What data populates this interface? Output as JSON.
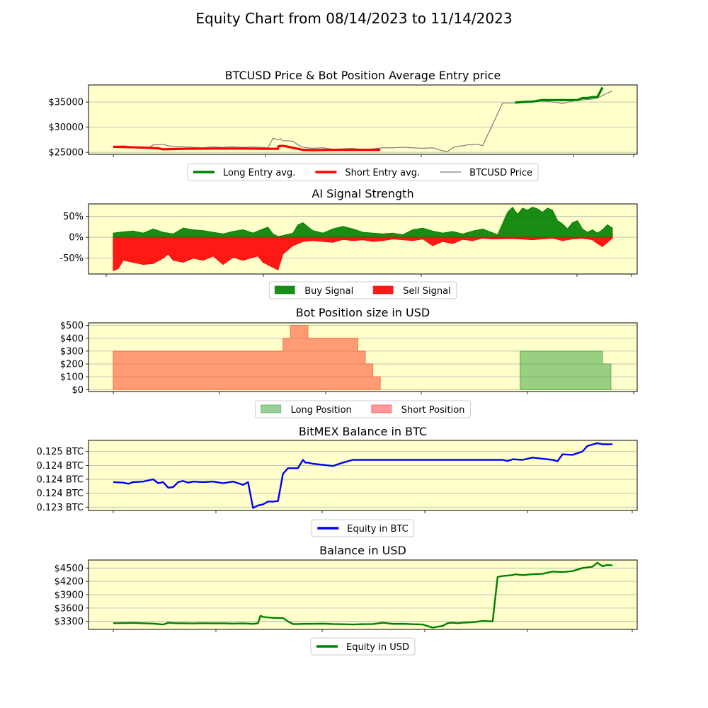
{
  "figure": {
    "title": "Equity Chart from 08/14/2023 to 11/14/2023",
    "panel_background": "#ffffcc",
    "grid_color": "#b0b0b0"
  },
  "chart_data": [
    {
      "type": "line",
      "title": "BTCUSD Price & Bot Position Average Entry price",
      "xlabel": "",
      "ylabel": "",
      "x_range": [
        0,
        100
      ],
      "ylim": [
        24600,
        38400
      ],
      "yticks": [
        25000,
        30000,
        35000
      ],
      "ytick_labels": [
        "$25000",
        "$30000",
        "$35000"
      ],
      "grid": "horizontal",
      "legend": {
        "placement": "below",
        "entries": [
          {
            "label": "Long Entry avg.",
            "color": "#008000",
            "kind": "line-thick"
          },
          {
            "label": "Short Entry avg.",
            "color": "#ff0000",
            "kind": "line-thick"
          },
          {
            "label": "BTCUSD Price",
            "color": "#808080",
            "kind": "line-thin"
          }
        ]
      },
      "series": [
        {
          "name": "BTCUSD Price",
          "color": "#808080",
          "width": 1.2,
          "x": [
            0,
            2,
            4,
            6,
            7,
            8,
            9,
            10,
            11,
            12,
            14,
            16,
            18,
            20,
            22,
            24,
            26,
            28,
            29,
            30,
            31,
            32,
            33,
            33.5,
            34,
            35,
            36,
            37,
            38,
            40,
            42,
            44,
            46,
            48,
            50,
            52,
            54,
            56,
            58,
            60,
            62,
            64,
            66,
            67,
            68,
            68.5,
            69,
            70,
            71,
            72,
            73,
            74,
            78,
            80,
            82,
            84,
            86,
            88,
            89,
            90,
            92,
            94,
            96,
            97,
            98,
            99,
            100
          ],
          "y": [
            26200,
            26300,
            26100,
            26000,
            25800,
            26500,
            26500,
            26600,
            26300,
            26200,
            26100,
            26000,
            25900,
            26100,
            26000,
            26100,
            26000,
            26100,
            26000,
            26000,
            25900,
            27800,
            27500,
            27700,
            27300,
            27300,
            27200,
            26500,
            26000,
            25800,
            25900,
            25600,
            25700,
            25800,
            25500,
            25700,
            25900,
            25900,
            26000,
            25900,
            25800,
            25900,
            25300,
            25200,
            25900,
            26100,
            26200,
            26300,
            26500,
            26500,
            26600,
            26300,
            34800,
            34800,
            35000,
            35100,
            35200,
            35000,
            34900,
            34700,
            35200,
            35400,
            35600,
            35800,
            36300,
            36800,
            37200
          ]
        },
        {
          "name": "Short Entry avg.",
          "color": "#ff0000",
          "width": 3.2,
          "x": [
            0,
            4,
            7,
            9,
            10,
            14,
            20,
            26,
            30,
            33,
            33.1,
            34,
            35,
            36,
            38,
            40,
            44,
            48,
            53.5
          ],
          "y": [
            26100,
            26000,
            25900,
            25800,
            25600,
            25700,
            25750,
            25750,
            25700,
            25700,
            26200,
            26300,
            26100,
            25900,
            25500,
            25450,
            25500,
            25500,
            25500
          ]
        },
        {
          "name": "Long Entry avg.",
          "color": "#008000",
          "width": 3.2,
          "x": [
            80.5,
            82,
            84,
            86,
            88,
            89,
            90,
            92,
            93,
            94,
            95,
            96,
            97,
            98
          ],
          "y": [
            34900,
            35000,
            35100,
            35400,
            35400,
            35400,
            35400,
            35400,
            35400,
            35800,
            35800,
            36000,
            36000,
            37900
          ]
        }
      ]
    },
    {
      "type": "area",
      "title": "AI Signal Strength",
      "xlabel": "",
      "ylabel": "",
      "x_range": [
        0,
        100
      ],
      "ylim": [
        -88,
        80
      ],
      "yticks": [
        -50,
        0,
        50
      ],
      "ytick_labels": [
        "-50%",
        "0%",
        "50%"
      ],
      "grid": "horizontal",
      "legend": {
        "placement": "below",
        "entries": [
          {
            "label": "Buy Signal",
            "color": "#008000",
            "kind": "patch"
          },
          {
            "label": "Sell Signal",
            "color": "#ff0000",
            "kind": "patch"
          }
        ]
      },
      "series": [
        {
          "name": "Buy Signal",
          "color": "#008000",
          "opacity": 0.9,
          "x": [
            0,
            2,
            4,
            6,
            8,
            10,
            12,
            14,
            16,
            18,
            20,
            22,
            24,
            26,
            28,
            30,
            31,
            32,
            33,
            34,
            36,
            37,
            38,
            39,
            40,
            42,
            44,
            46,
            48,
            50,
            52,
            54,
            56,
            58,
            60,
            62,
            64,
            66,
            68,
            70,
            72,
            74,
            77,
            79,
            80,
            81,
            82,
            83,
            84,
            85,
            86,
            87,
            88,
            89,
            90,
            91,
            92,
            93,
            94,
            95,
            96,
            97,
            98,
            99,
            100
          ],
          "y": [
            10,
            13,
            15,
            10,
            20,
            12,
            8,
            22,
            18,
            16,
            12,
            8,
            14,
            18,
            10,
            20,
            24,
            8,
            2,
            4,
            10,
            30,
            35,
            25,
            16,
            10,
            20,
            26,
            20,
            12,
            10,
            8,
            10,
            6,
            18,
            22,
            15,
            10,
            14,
            8,
            15,
            20,
            6,
            60,
            72,
            55,
            70,
            65,
            72,
            68,
            60,
            70,
            65,
            40,
            32,
            20,
            35,
            40,
            20,
            12,
            18,
            10,
            18,
            30,
            22
          ]
        },
        {
          "name": "Sell Signal",
          "color": "#ff0000",
          "opacity": 0.9,
          "x": [
            0,
            1,
            2,
            4,
            6,
            8,
            10,
            11,
            12,
            14,
            16,
            18,
            20,
            22,
            24,
            26,
            28,
            29,
            30,
            32,
            33,
            34,
            35,
            36,
            37,
            38,
            40,
            42,
            44,
            46,
            48,
            50,
            52,
            54,
            56,
            58,
            60,
            62,
            64,
            66,
            68,
            70,
            72,
            74,
            76,
            80,
            84,
            86,
            88,
            90,
            92,
            94,
            96,
            97,
            98,
            99,
            100
          ],
          "y": [
            -80,
            -75,
            -55,
            -60,
            -65,
            -63,
            -50,
            -40,
            -55,
            -60,
            -50,
            -55,
            -45,
            -65,
            -48,
            -55,
            -48,
            -45,
            -60,
            -72,
            -78,
            -40,
            -30,
            -20,
            -15,
            -10,
            -8,
            -10,
            -12,
            -5,
            -8,
            -6,
            -10,
            -8,
            -4,
            -6,
            -8,
            -4,
            -20,
            -10,
            -15,
            -5,
            -8,
            -2,
            -4,
            -3,
            -6,
            -4,
            -2,
            -8,
            -4,
            -2,
            -6,
            -15,
            -22,
            -12,
            -2
          ]
        }
      ]
    },
    {
      "type": "area",
      "title": "Bot Position size in USD",
      "xlabel": "",
      "ylabel": "",
      "x_range": [
        0,
        100
      ],
      "ylim": [
        -15,
        520
      ],
      "yticks": [
        0,
        100,
        200,
        300,
        400,
        500
      ],
      "ytick_labels": [
        "$0",
        "$100",
        "$200",
        "$300",
        "$400",
        "$500"
      ],
      "grid": "horizontal",
      "legend": {
        "placement": "below",
        "entries": [
          {
            "label": "Long Position",
            "color": "#33a033",
            "kind": "patch-light"
          },
          {
            "label": "Short Position",
            "color": "#ff3333",
            "kind": "patch-light"
          }
        ]
      },
      "series": [
        {
          "name": "Short Position",
          "color": "#ff5a3a",
          "opacity": 0.6,
          "x": [
            0,
            34,
            35.5,
            39,
            49,
            50.5,
            52,
            53.5
          ],
          "y": [
            300,
            400,
            500,
            400,
            300,
            200,
            100,
            0
          ]
        },
        {
          "name": "Long Position",
          "color": "#33a033",
          "opacity": 0.5,
          "x": [
            81.5,
            98,
            99.7,
            100
          ],
          "y": [
            300,
            200,
            0,
            0
          ]
        }
      ]
    },
    {
      "type": "line",
      "title": "BitMEX Balance in BTC",
      "xlabel": "",
      "ylabel": "",
      "x_range": [
        0,
        100
      ],
      "ylim": [
        0.12288,
        0.1254
      ],
      "yticks": [
        0.123,
        0.1235,
        0.124,
        0.1245,
        0.125
      ],
      "ytick_labels": [
        "0.123 BTC",
        "0.124 BTC",
        "0.124 BTC",
        "0.124 BTC",
        "0.125 BTC"
      ],
      "grid": "horizontal",
      "legend": {
        "placement": "below",
        "entries": [
          {
            "label": "Equity in BTC",
            "color": "#0000ff",
            "kind": "line-thick"
          }
        ]
      },
      "series": [
        {
          "name": "Equity in BTC",
          "color": "#0000ff",
          "width": 2.4,
          "x": [
            0,
            2,
            3,
            4,
            6,
            8,
            9,
            10,
            11,
            12,
            13,
            14,
            15,
            16,
            18,
            20,
            22,
            24,
            26,
            27,
            28,
            29,
            30,
            31,
            32,
            33,
            34,
            35,
            36,
            37,
            38,
            38.5,
            39,
            40,
            42,
            44,
            46,
            48,
            50,
            52,
            54,
            56,
            58,
            60,
            62,
            64,
            66,
            68,
            70,
            72,
            74,
            76,
            78,
            79,
            80,
            82,
            84,
            86,
            88,
            89,
            90,
            92,
            94,
            95,
            96,
            97,
            98,
            100
          ],
          "y": [
            0.1239,
            0.12388,
            0.12384,
            0.1239,
            0.12392,
            0.124,
            0.12386,
            0.1239,
            0.1237,
            0.12372,
            0.1239,
            0.12394,
            0.12388,
            0.12392,
            0.1239,
            0.12392,
            0.12386,
            0.12392,
            0.1238,
            0.1239,
            0.12297,
            0.12306,
            0.1231,
            0.1232,
            0.1232,
            0.12322,
            0.1242,
            0.1244,
            0.1244,
            0.1244,
            0.1247,
            0.1246,
            0.1246,
            0.12456,
            0.12452,
            0.12448,
            0.1246,
            0.1247,
            0.1247,
            0.1247,
            0.1247,
            0.1247,
            0.1247,
            0.1247,
            0.1247,
            0.1247,
            0.1247,
            0.1247,
            0.1247,
            0.1247,
            0.1247,
            0.1247,
            0.1247,
            0.12466,
            0.12472,
            0.1247,
            0.12478,
            0.12474,
            0.1247,
            0.12465,
            0.1249,
            0.12488,
            0.125,
            0.1252,
            0.12525,
            0.1253,
            0.12526,
            0.12526
          ]
        }
      ]
    },
    {
      "type": "line",
      "title": "Balance in USD",
      "xlabel": "",
      "ylabel": "",
      "x_range": [
        0,
        100
      ],
      "ylim": [
        3120,
        4680
      ],
      "yticks": [
        3300,
        3600,
        3900,
        4200,
        4500
      ],
      "ytick_labels": [
        "$3300",
        "$3600",
        "$3900",
        "$4200",
        "$4500"
      ],
      "grid": "horizontal",
      "legend": {
        "placement": "below",
        "entries": [
          {
            "label": "Equity in USD",
            "color": "#008000",
            "kind": "line-thick"
          }
        ]
      },
      "series": [
        {
          "name": "Equity in USD",
          "color": "#008000",
          "width": 2.4,
          "x": [
            0,
            2,
            4,
            6,
            8,
            9,
            10,
            11,
            12,
            14,
            16,
            18,
            20,
            22,
            24,
            26,
            28,
            29,
            29.5,
            30,
            32,
            34,
            35,
            36,
            37,
            38,
            40,
            42,
            44,
            46,
            48,
            50,
            52,
            54,
            56,
            58,
            60,
            62,
            64,
            66,
            67,
            68,
            69,
            70,
            72,
            74,
            76,
            77,
            78,
            79,
            80,
            80.5,
            82,
            84,
            86,
            88,
            90,
            92,
            94,
            96,
            97,
            98,
            99,
            100
          ],
          "y": [
            3260,
            3262,
            3266,
            3258,
            3250,
            3240,
            3230,
            3270,
            3262,
            3258,
            3254,
            3260,
            3256,
            3258,
            3250,
            3256,
            3244,
            3260,
            3430,
            3400,
            3380,
            3375,
            3300,
            3240,
            3240,
            3244,
            3246,
            3250,
            3240,
            3236,
            3230,
            3238,
            3240,
            3270,
            3244,
            3246,
            3236,
            3230,
            3160,
            3200,
            3260,
            3270,
            3260,
            3270,
            3280,
            3310,
            3300,
            4300,
            4320,
            4330,
            4340,
            4360,
            4340,
            4360,
            4370,
            4420,
            4410,
            4430,
            4500,
            4530,
            4620,
            4540,
            4570,
            4560
          ]
        }
      ]
    }
  ]
}
